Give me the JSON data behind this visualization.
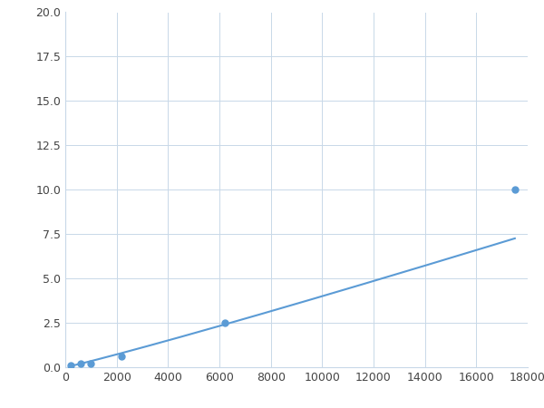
{
  "x_points": [
    200,
    600,
    1000,
    2200,
    6200,
    17500
  ],
  "y_points": [
    0.1,
    0.2,
    0.2,
    0.6,
    2.5,
    10.0
  ],
  "line_color": "#5b9bd5",
  "marker_color": "#5b9bd5",
  "marker_size": 5,
  "xlim": [
    0,
    18000
  ],
  "ylim": [
    0,
    20.0
  ],
  "xticks": [
    0,
    2000,
    4000,
    6000,
    8000,
    10000,
    12000,
    14000,
    16000,
    18000
  ],
  "yticks": [
    0.0,
    2.5,
    5.0,
    7.5,
    10.0,
    12.5,
    15.0,
    17.5,
    20.0
  ],
  "grid_color": "#c8d8e8",
  "background_color": "#ffffff",
  "linewidth": 1.5,
  "figsize": [
    6.0,
    4.5
  ],
  "dpi": 100
}
